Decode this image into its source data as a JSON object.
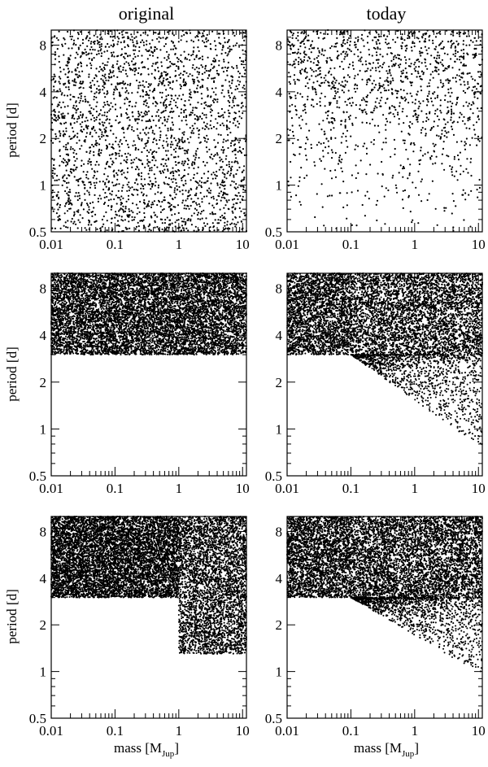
{
  "figure": {
    "column_titles": [
      "original",
      "today"
    ],
    "ylabel": "period  [d]",
    "xlabel": {
      "left": {
        "base": "mass [M",
        "sub": "Jup",
        "close": "]"
      },
      "right": {
        "base": "mass  [M",
        "sub": "Jup",
        "close": "]"
      }
    }
  },
  "chart_data": [
    {
      "panel": "top-original",
      "type": "scatter",
      "xscale": "log",
      "yscale": "log",
      "xlim": [
        0.01,
        11.5
      ],
      "ylim": [
        0.5,
        10
      ],
      "xticks": [
        "0.01",
        "0.1",
        "1",
        "10"
      ],
      "yticks": [
        "0.5",
        "1",
        "2",
        "4",
        "8"
      ],
      "title": "original",
      "ylabel": "period  [d]",
      "xlabel": "",
      "grid": false,
      "legend": "none",
      "marker_color": "#000000",
      "distribution": {
        "kind": "uniform",
        "n": 2600,
        "x": [
          0.01,
          11.5
        ],
        "y": [
          0.5,
          10
        ]
      }
    },
    {
      "panel": "top-today",
      "type": "scatter",
      "xscale": "log",
      "yscale": "log",
      "xlim": [
        0.01,
        11.5
      ],
      "ylim": [
        0.5,
        10
      ],
      "xticks": [
        "0.01",
        "0.1",
        "1",
        "10"
      ],
      "yticks": [
        "0.5",
        "1",
        "2",
        "4",
        "8"
      ],
      "title": "today",
      "ylabel": "",
      "xlabel": "",
      "grid": false,
      "legend": "none",
      "marker_color": "#000000",
      "distribution": {
        "kind": "depleted",
        "n": 2600,
        "x": [
          0.01,
          11.5
        ],
        "y": [
          0.5,
          10
        ],
        "survive_pivot_period": 1.0,
        "depletion_strength": 1.4
      }
    },
    {
      "panel": "middle-original",
      "type": "scatter",
      "xscale": "log",
      "yscale": "log",
      "xlim": [
        0.01,
        11.5
      ],
      "ylim": [
        0.5,
        10
      ],
      "xticks": [
        "0.01",
        "0.1",
        "1",
        "10"
      ],
      "yticks": [
        "0.5",
        "1",
        "2",
        "4",
        "8"
      ],
      "title": "",
      "ylabel": "period  [d]",
      "xlabel": "",
      "grid": false,
      "legend": "none",
      "marker_color": "#000000",
      "distribution": {
        "kind": "uniform",
        "n": 9000,
        "x": [
          0.01,
          11.5
        ],
        "y": [
          3.0,
          10
        ]
      }
    },
    {
      "panel": "middle-today",
      "type": "scatter",
      "xscale": "log",
      "yscale": "log",
      "xlim": [
        0.01,
        11.5
      ],
      "ylim": [
        0.5,
        10
      ],
      "xticks": [
        "0.01",
        "0.1",
        "1",
        "10"
      ],
      "yticks": [
        "0.5",
        "1",
        "2",
        "4",
        "8"
      ],
      "title": "",
      "ylabel": "",
      "xlabel": "",
      "grid": false,
      "legend": "none",
      "marker_color": "#000000",
      "distribution": {
        "kind": "migrated",
        "n": 8000,
        "x": [
          0.01,
          11.5
        ],
        "y": [
          3.0,
          10
        ],
        "migration_mass_min": 0.1,
        "lowest_period": 0.75
      }
    },
    {
      "panel": "bottom-original",
      "type": "scatter",
      "xscale": "log",
      "yscale": "log",
      "xlim": [
        0.01,
        11.5
      ],
      "ylim": [
        0.5,
        10
      ],
      "xticks": [
        "0.01",
        "0.1",
        "1",
        "10"
      ],
      "yticks": [
        "0.5",
        "1",
        "2",
        "4",
        "8"
      ],
      "title": "",
      "ylabel": "period  [d]",
      "xlabel": "mass [M_Jup]",
      "grid": false,
      "legend": "none",
      "marker_color": "#000000",
      "distribution": {
        "kind": "step",
        "n": 11000,
        "x": [
          0.01,
          11.5
        ],
        "y": [
          3.0,
          10
        ],
        "step_mass": 1.0,
        "y_min_above_step": 1.3
      }
    },
    {
      "panel": "bottom-today",
      "type": "scatter",
      "xscale": "log",
      "yscale": "log",
      "xlim": [
        0.01,
        11.5
      ],
      "ylim": [
        0.5,
        10
      ],
      "xticks": [
        "0.01",
        "0.1",
        "1",
        "10"
      ],
      "yticks": [
        "0.5",
        "1",
        "2",
        "4",
        "8"
      ],
      "title": "",
      "ylabel": "",
      "xlabel": "mass  [M_Jup]",
      "grid": false,
      "legend": "none",
      "marker_color": "#000000",
      "distribution": {
        "kind": "migrated",
        "n": 9000,
        "x": [
          0.01,
          11.5
        ],
        "y": [
          3.0,
          10
        ],
        "migration_mass_min": 0.1,
        "lowest_period": 0.95
      }
    }
  ]
}
